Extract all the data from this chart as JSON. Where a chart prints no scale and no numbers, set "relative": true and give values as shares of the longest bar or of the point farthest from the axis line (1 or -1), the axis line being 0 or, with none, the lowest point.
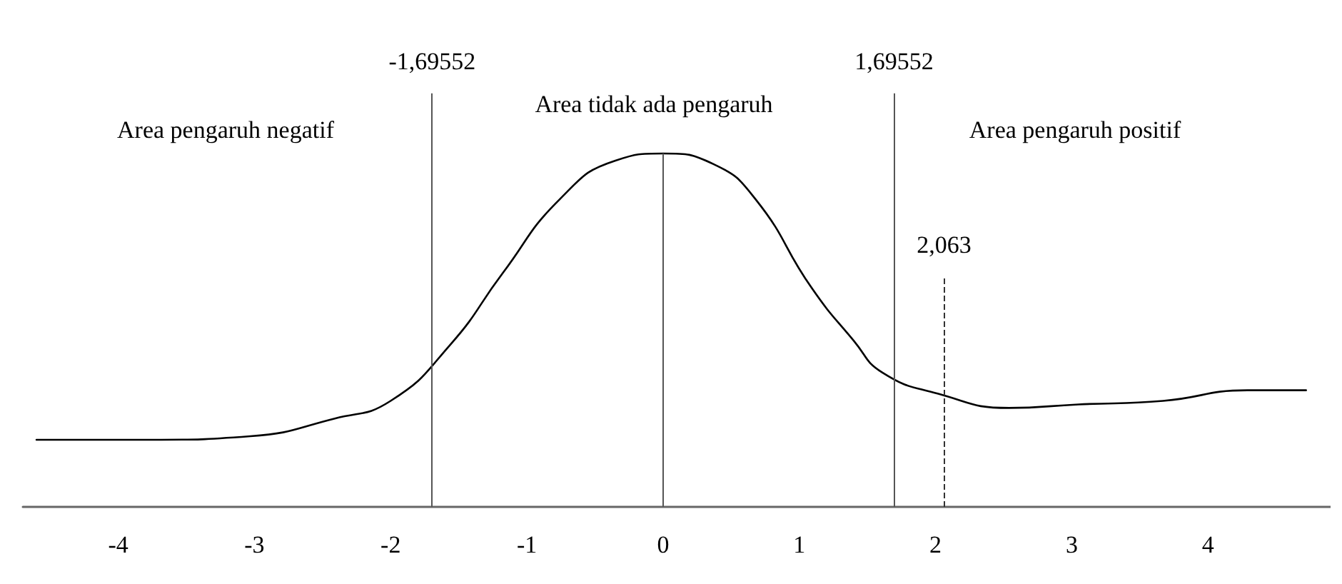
{
  "chart_data": {
    "type": "line",
    "relative": true,
    "x": [
      -4.6,
      -3.75,
      -3.03,
      -2.41,
      -2.0,
      -1.56,
      -1.18,
      -0.76,
      -0.35,
      0,
      0.37,
      0.68,
      1.09,
      1.4,
      1.61,
      2.02,
      2.54,
      3.05,
      3.67,
      4.29,
      4.72
    ],
    "series": [
      {
        "color": "#000000",
        "values": [
          0.19,
          0.19,
          0.2,
          0.25,
          0.3,
          0.46,
          0.66,
          0.87,
          0.98,
          1,
          0.97,
          0.87,
          0.62,
          0.47,
          0.38,
          0.32,
          0.28,
          0.29,
          0.3,
          0.33,
          0.33
        ]
      }
    ],
    "xlim": [
      -4.7,
      4.9
    ],
    "xticks": [
      -4,
      -3,
      -2,
      -1,
      0,
      1,
      2,
      3,
      4
    ],
    "ref_lines": [
      {
        "axis": "x",
        "value": -1.69552,
        "label": "-1,69552",
        "color": "#555555",
        "line_style": "solid"
      },
      {
        "axis": "x",
        "value": 1.69552,
        "label": "1,69552",
        "color": "#555555",
        "line_style": "solid"
      },
      {
        "axis": "x",
        "value": 0,
        "label": null,
        "color": "#555555",
        "line_style": "solid"
      },
      {
        "axis": "x",
        "value": 2.063,
        "label": "2,063",
        "color": "#333333",
        "line_style": "dashed"
      }
    ],
    "annotations": [
      "Area pengaruh negatif",
      "Area tidak ada pengaruh",
      "Area pengaruh positif"
    ],
    "grid": false,
    "marker": "none",
    "line_style": "solid"
  }
}
